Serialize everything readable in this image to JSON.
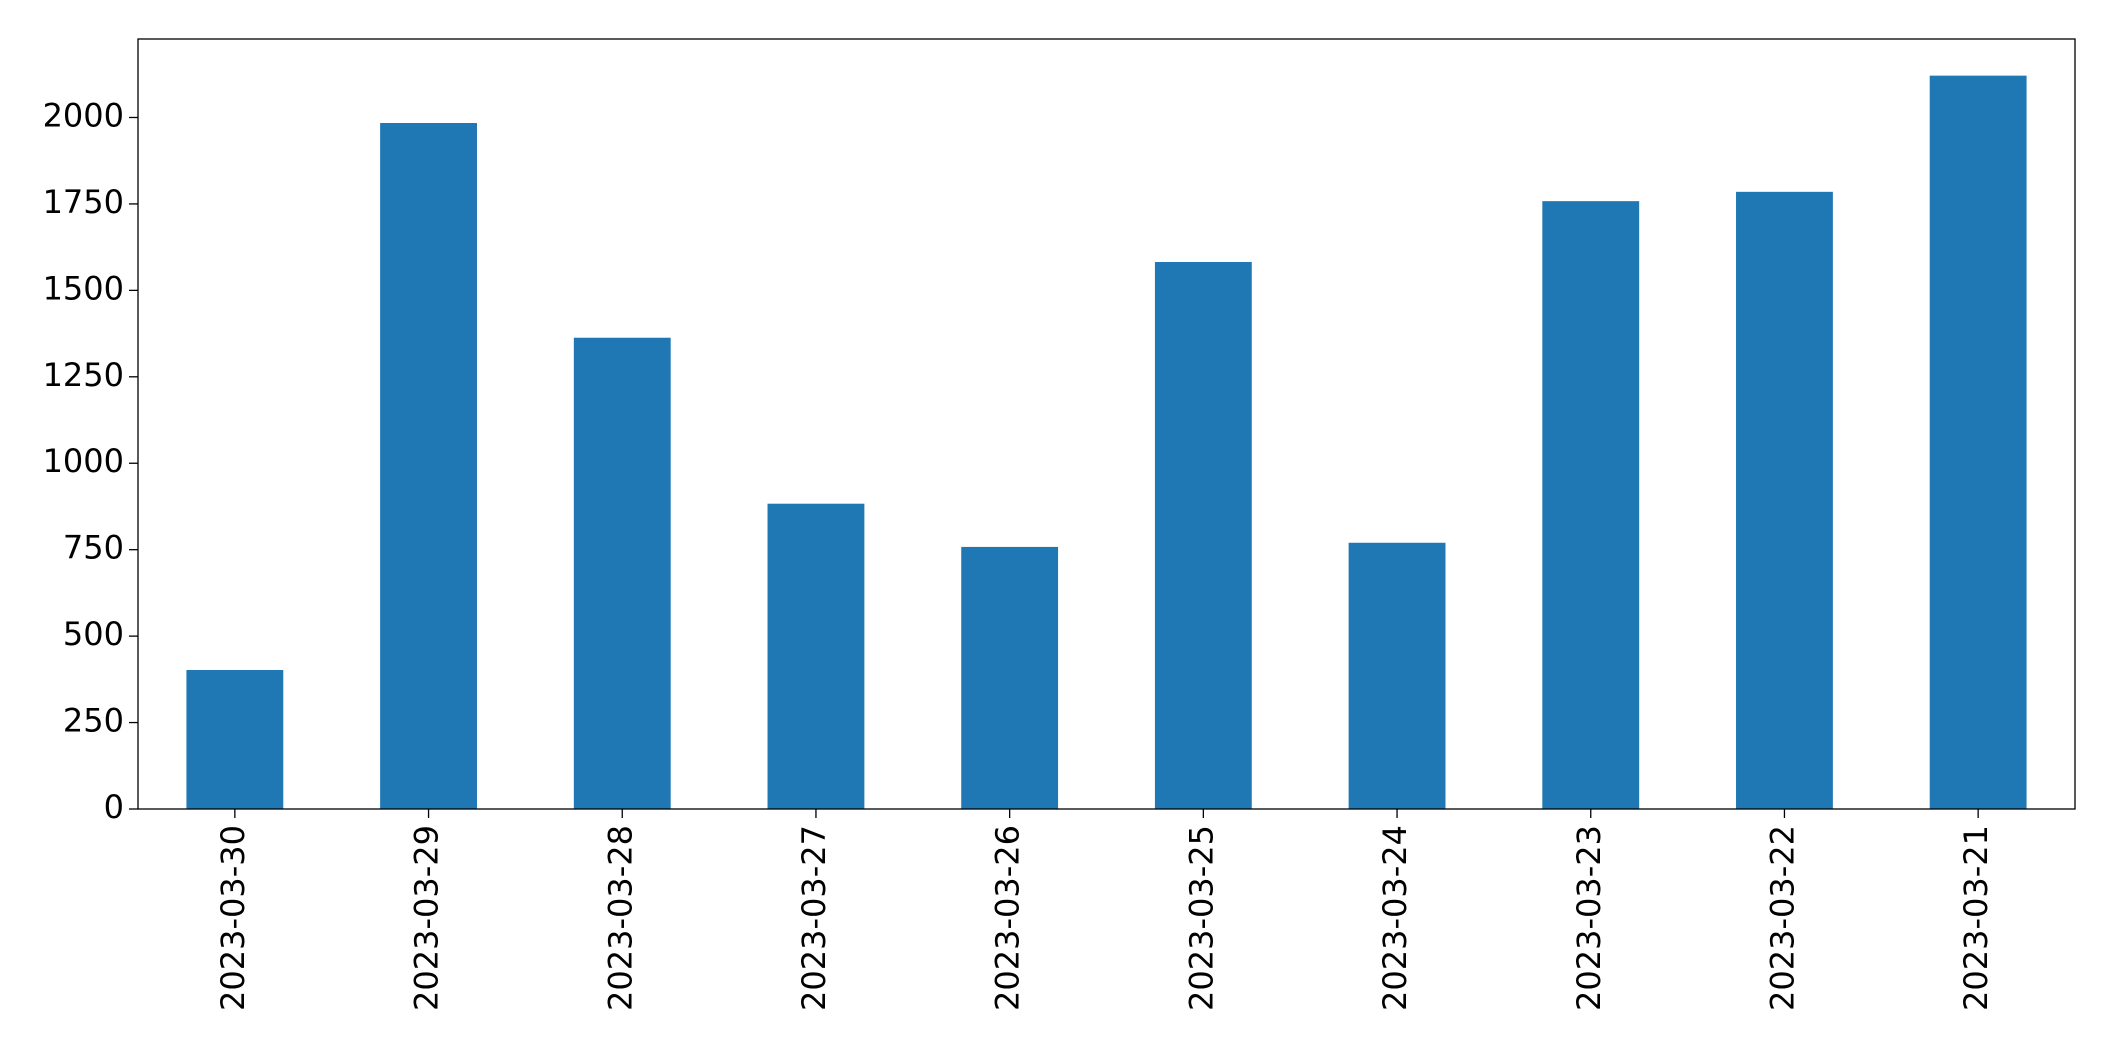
{
  "chart_data": {
    "type": "bar",
    "categories": [
      "2023-03-30",
      "2023-03-29",
      "2023-03-28",
      "2023-03-27",
      "2023-03-26",
      "2023-03-25",
      "2023-03-24",
      "2023-03-23",
      "2023-03-22",
      "2023-03-21"
    ],
    "values": [
      402,
      1984,
      1363,
      883,
      758,
      1582,
      770,
      1758,
      1785,
      2121
    ],
    "color": "#1f77b4",
    "ylim": [
      0,
      2227
    ],
    "yticks": [
      0,
      250,
      500,
      750,
      1000,
      1250,
      1500,
      1750,
      2000
    ],
    "grid": false
  }
}
